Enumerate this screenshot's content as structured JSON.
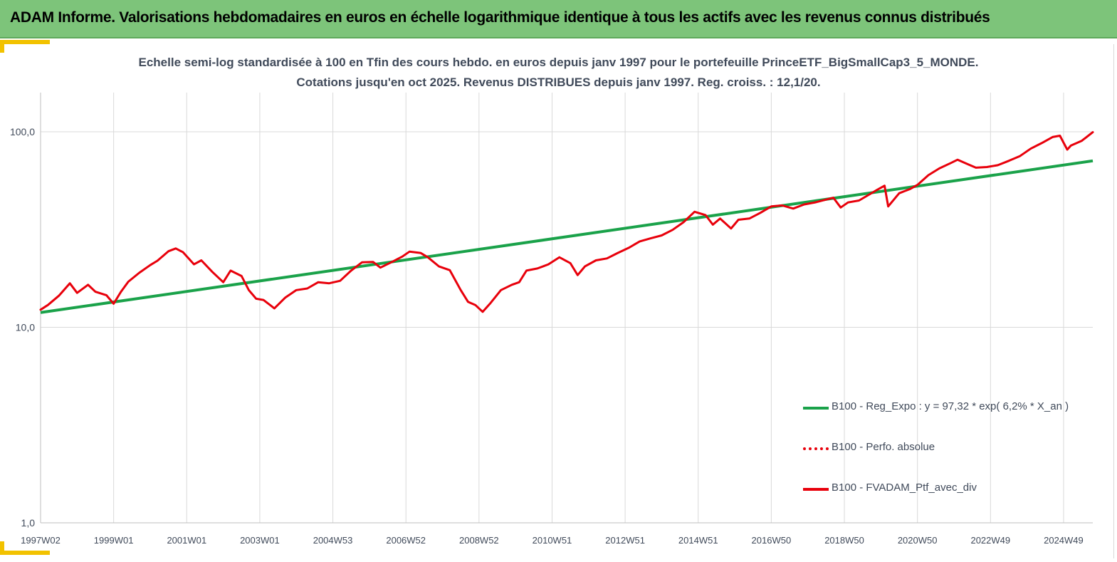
{
  "banner": {
    "title": "ADAM Informe. Valorisations hebdomadaires en euros en échelle logarithmique identique à tous les actifs avec les revenus connus distribués"
  },
  "colors": {
    "banner_bg": "#7dc47a",
    "accent": "#f2c200",
    "regression": "#1aa24a",
    "portfolio": "#e8000b",
    "text": "#404a5a",
    "grid": "#d9d9d9"
  },
  "chart_data": {
    "type": "line",
    "title_line1": "Echelle semi-log standardisée à 100 en Tfin des cours hebdo.  en euros depuis janv 1997 pour le portefeuille PrinceETF_BigSmallCap3_5_MONDE.",
    "title_line2": "Cotations jusqu'en oct 2025. Revenus DISTRIBUES depuis janv 1997. Reg. croiss. : 12,1/20.",
    "y_scale": "log",
    "ylim": [
      1,
      100
    ],
    "y_ticks": [
      "1,0",
      "10,0",
      "100,0"
    ],
    "y_tick_values": [
      1,
      10,
      100
    ],
    "xlim": [
      1997.0,
      2025.8
    ],
    "x_tick_labels": [
      "1997W02",
      "1999W01",
      "2001W01",
      "2003W01",
      "2004W53",
      "2006W52",
      "2008W52",
      "2010W51",
      "2012W51",
      "2014W51",
      "2016W50",
      "2018W50",
      "2020W50",
      "2022W49",
      "2024W49"
    ],
    "x_tick_values": [
      1997.0,
      1999.0,
      2001.0,
      2003.0,
      2005.0,
      2007.0,
      2009.0,
      2011.0,
      2013.0,
      2015.0,
      2017.0,
      2019.0,
      2021.0,
      2023.0,
      2025.0
    ],
    "grid": "vertical",
    "legend_position": "bottom-right",
    "legend": [
      {
        "label": "B100 - Reg_Expo : y = 97,32 * exp( 6,2% *  X_an )",
        "style": "solid-green"
      },
      {
        "label": "B100 - Perfo. absolue",
        "style": "dotted-red"
      },
      {
        "label": "B100 - FVADAM_Ptf_avec_div",
        "style": "solid-red"
      }
    ],
    "series": [
      {
        "name": "B100 - Reg_Expo : y = 97,32 * exp( 6,2% *  X_an )",
        "x": [
          1997.0,
          2025.8
        ],
        "y": [
          11.9,
          71.0
        ]
      },
      {
        "name": "B100 - FVADAM_Ptf_avec_div",
        "x": [
          1997.0,
          1997.2,
          1997.5,
          1997.8,
          1998.0,
          1998.3,
          1998.5,
          1998.8,
          1999.0,
          1999.2,
          1999.4,
          1999.7,
          2000.0,
          2000.2,
          2000.5,
          2000.7,
          2000.9,
          2001.2,
          2001.4,
          2001.7,
          2002.0,
          2002.2,
          2002.5,
          2002.7,
          2002.9,
          2003.1,
          2003.4,
          2003.7,
          2004.0,
          2004.3,
          2004.6,
          2004.9,
          2005.2,
          2005.5,
          2005.8,
          2006.1,
          2006.3,
          2006.6,
          2006.9,
          2007.1,
          2007.4,
          2007.6,
          2007.9,
          2008.2,
          2008.5,
          2008.7,
          2008.9,
          2009.1,
          2009.3,
          2009.6,
          2009.9,
          2010.1,
          2010.3,
          2010.6,
          2010.9,
          2011.2,
          2011.5,
          2011.7,
          2011.9,
          2012.2,
          2012.5,
          2012.8,
          2013.1,
          2013.4,
          2013.7,
          2014.0,
          2014.3,
          2014.6,
          2014.9,
          2015.2,
          2015.4,
          2015.6,
          2015.9,
          2016.1,
          2016.4,
          2016.7,
          2017.0,
          2017.3,
          2017.6,
          2017.9,
          2018.2,
          2018.5,
          2018.7,
          2018.9,
          2019.1,
          2019.4,
          2019.7,
          2019.9,
          2020.1,
          2020.2,
          2020.5,
          2020.8,
          2021.0,
          2021.3,
          2021.6,
          2021.9,
          2022.1,
          2022.4,
          2022.6,
          2022.9,
          2023.2,
          2023.5,
          2023.8,
          2024.1,
          2024.4,
          2024.7,
          2024.9,
          2025.1,
          2025.2,
          2025.5,
          2025.8
        ],
        "y": [
          12.3,
          13.0,
          14.5,
          16.8,
          15.0,
          16.5,
          15.2,
          14.6,
          13.2,
          15.2,
          17.1,
          19.0,
          20.8,
          21.9,
          24.5,
          25.3,
          24.2,
          21.0,
          22.0,
          19.2,
          17.0,
          19.5,
          18.3,
          15.5,
          14.0,
          13.8,
          12.5,
          14.2,
          15.5,
          15.8,
          17.0,
          16.8,
          17.3,
          19.5,
          21.5,
          21.6,
          20.2,
          21.5,
          23.0,
          24.4,
          24.0,
          22.8,
          20.5,
          19.6,
          15.5,
          13.5,
          13.0,
          12.0,
          13.2,
          15.5,
          16.5,
          17.0,
          19.5,
          20.0,
          21.0,
          22.8,
          21.3,
          18.5,
          20.5,
          22.0,
          22.5,
          24.0,
          25.5,
          27.5,
          28.5,
          29.5,
          31.5,
          34.5,
          39.0,
          37.5,
          33.5,
          36.0,
          32.0,
          35.5,
          36.0,
          38.5,
          41.5,
          42.0,
          40.5,
          42.5,
          43.5,
          45.0,
          46.0,
          41.0,
          43.5,
          44.5,
          48.0,
          50.5,
          53.0,
          41.5,
          48.5,
          51.0,
          53.5,
          60.0,
          65.0,
          69.0,
          72.0,
          68.0,
          65.5,
          66.0,
          67.5,
          71.0,
          75.0,
          82.0,
          87.5,
          94.0,
          95.5,
          81.0,
          85.0,
          90.0,
          99.5
        ]
      }
    ]
  }
}
